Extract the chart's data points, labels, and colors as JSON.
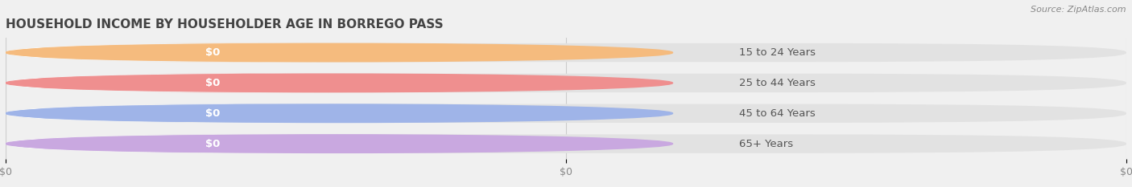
{
  "title": "HOUSEHOLD INCOME BY HOUSEHOLDER AGE IN BORREGO PASS",
  "source": "Source: ZipAtlas.com",
  "categories": [
    "15 to 24 Years",
    "25 to 44 Years",
    "45 to 64 Years",
    "65+ Years"
  ],
  "values": [
    0,
    0,
    0,
    0
  ],
  "bar_colors": [
    "#f5bb7e",
    "#ef8f8f",
    "#9fb4e8",
    "#c9a8e0"
  ],
  "background_color": "#f0f0f0",
  "bar_bg_color": "#e2e2e2",
  "white_section_color": "#ffffff",
  "title_fontsize": 11,
  "tick_fontsize": 9,
  "label_fontsize": 9.5,
  "value_label": "$0",
  "x_tick_labels": [
    "$0",
    "$0",
    "$0"
  ],
  "x_tick_positions": [
    0.0,
    0.5,
    1.0
  ]
}
